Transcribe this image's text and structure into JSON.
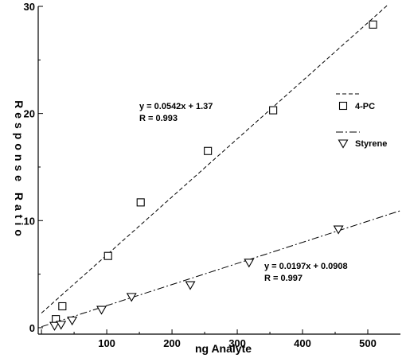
{
  "chart_data": {
    "type": "scatter",
    "xlabel": "ng Analyte",
    "ylabel": "Response Ratio",
    "xlim": [
      -5,
      550
    ],
    "ylim": [
      -0.6,
      30
    ],
    "xticks": [
      0,
      100,
      200,
      300,
      400,
      500
    ],
    "yticks": [
      0,
      10,
      20,
      30
    ],
    "x_tick_labels": [
      "0",
      "100",
      "200",
      "300",
      "400",
      "500"
    ],
    "y_tick_labels": [
      "0",
      "10",
      "20",
      "30"
    ],
    "grid": false,
    "legend_position": "right",
    "series": [
      {
        "name": "4-PC",
        "marker": "square",
        "line_style": "dashed",
        "color": "#000000",
        "points": [
          {
            "x": 22,
            "y": 0.8
          },
          {
            "x": 32,
            "y": 2.0
          },
          {
            "x": 102,
            "y": 6.7
          },
          {
            "x": 152,
            "y": 11.7
          },
          {
            "x": 255,
            "y": 16.5
          },
          {
            "x": 355,
            "y": 20.3
          },
          {
            "x": 508,
            "y": 28.3
          }
        ],
        "fit": {
          "slope": 0.0542,
          "intercept": 1.37,
          "x_range": [
            0,
            530
          ]
        },
        "equation": "y = 0.0542x + 1.37",
        "r": "R = 0.993"
      },
      {
        "name": "Styrene",
        "marker": "triangle-down",
        "line_style": "dash-dot",
        "color": "#000000",
        "points": [
          {
            "x": 20,
            "y": 0.2
          },
          {
            "x": 30,
            "y": 0.3
          },
          {
            "x": 47,
            "y": 0.7
          },
          {
            "x": 92,
            "y": 1.7
          },
          {
            "x": 138,
            "y": 2.9
          },
          {
            "x": 228,
            "y": 4.0
          },
          {
            "x": 318,
            "y": 6.1
          },
          {
            "x": 455,
            "y": 9.2
          }
        ],
        "fit": {
          "slope": 0.0197,
          "intercept": 0.0908,
          "x_range": [
            0,
            550
          ]
        },
        "equation": "y = 0.0197x + 0.0908",
        "r": "R = 0.997"
      }
    ]
  }
}
